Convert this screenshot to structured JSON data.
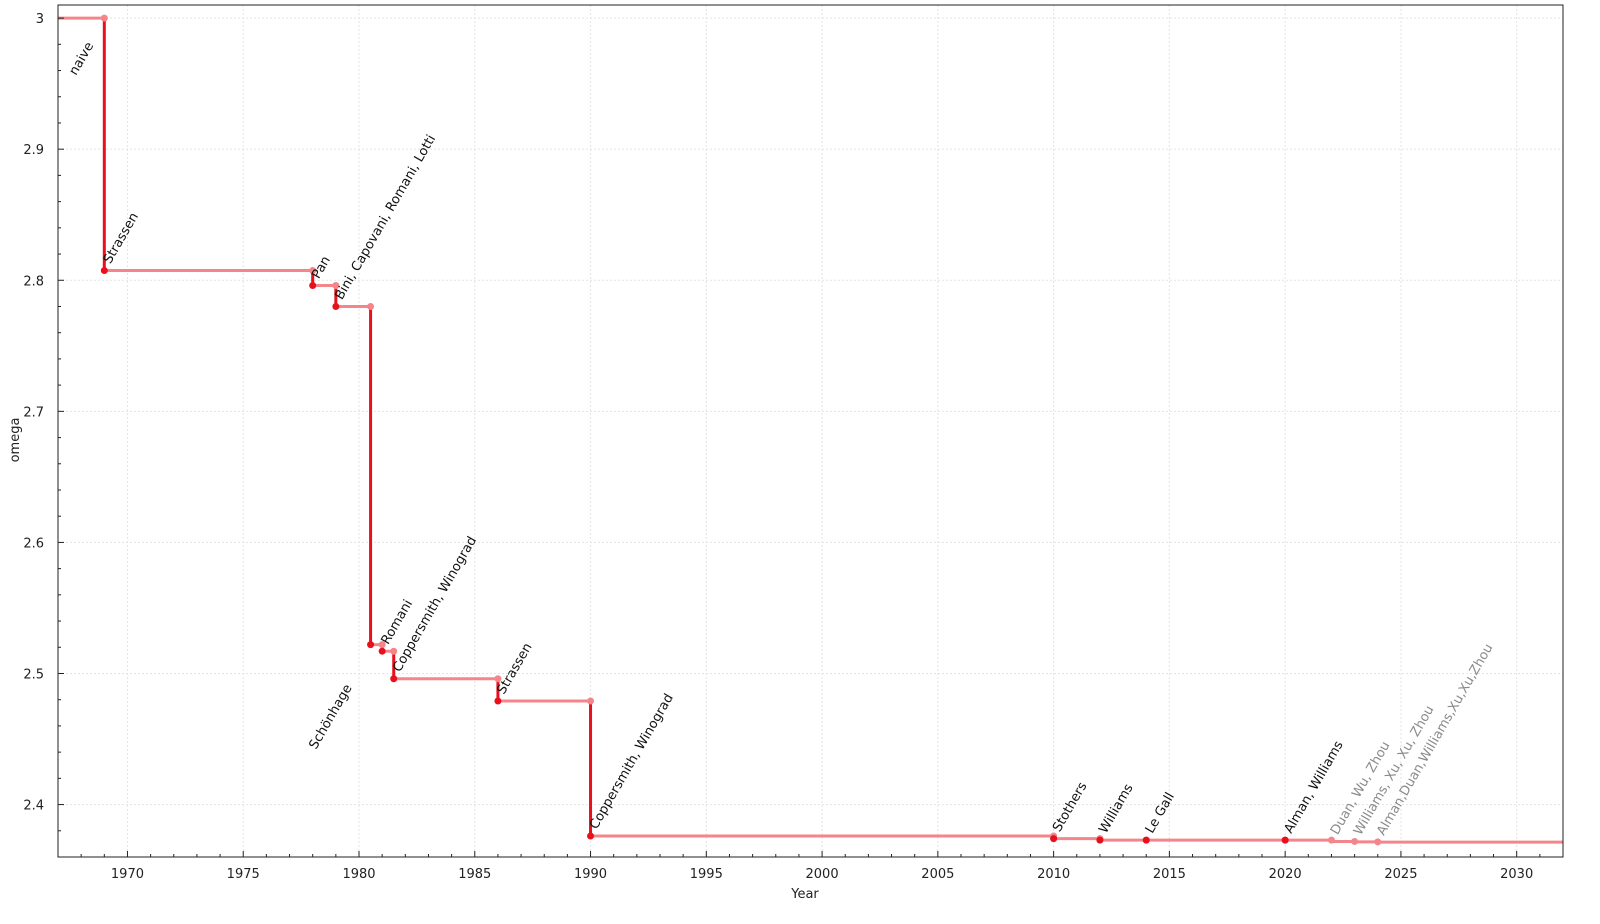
{
  "chart_data": {
    "type": "line",
    "step": true,
    "xlabel": "Year",
    "ylabel": "omega",
    "xlim": [
      1967,
      2032
    ],
    "ylim": [
      2.36,
      3.01
    ],
    "xticks": [
      1970,
      1975,
      1980,
      1985,
      1990,
      1995,
      2000,
      2005,
      2010,
      2015,
      2020,
      2025,
      2030
    ],
    "yticks": [
      2.4,
      2.5,
      2.6,
      2.7,
      2.8,
      2.9,
      3
    ],
    "ytick_labels": [
      "2.4",
      "2.5",
      "2.6",
      "2.7",
      "2.8",
      "2.9",
      "3"
    ],
    "grid": true,
    "colors": {
      "horizontal": "#f4858a",
      "drop": "#e8101a",
      "label": "#111111",
      "label_muted": "#8a8a8a"
    },
    "points": [
      {
        "label": "naive",
        "year": null,
        "omega": 3,
        "muted": false
      },
      {
        "label": "Strassen",
        "year": 1969,
        "omega": 2.8074,
        "muted": false
      },
      {
        "label": "Pan",
        "year": 1978,
        "omega": 2.796,
        "muted": false
      },
      {
        "label": "Bini, Capovani, Romani, Lotti",
        "year": 1979,
        "omega": 2.78,
        "muted": false
      },
      {
        "label": "Schönhage",
        "year": 1980.5,
        "omega": 2.522,
        "muted": false
      },
      {
        "label": "Romani",
        "year": 1981,
        "omega": 2.517,
        "muted": false
      },
      {
        "label": "Coppersmith, Winograd",
        "year": 1981.5,
        "omega": 2.496,
        "muted": false
      },
      {
        "label": "Strassen",
        "year": 1986,
        "omega": 2.479,
        "muted": false
      },
      {
        "label": "Coppersmith, Winograd",
        "year": 1990,
        "omega": 2.376,
        "muted": false
      },
      {
        "label": "Stothers",
        "year": 2010,
        "omega": 2.374,
        "muted": false
      },
      {
        "label": "Williams",
        "year": 2012,
        "omega": 2.3729,
        "muted": false
      },
      {
        "label": "Le Gall",
        "year": 2014,
        "omega": 2.3728639,
        "muted": false
      },
      {
        "label": "Alman, Williams",
        "year": 2020,
        "omega": 2.3728596,
        "muted": false
      },
      {
        "label": "Duan, Wu, Zhou",
        "year": 2022,
        "omega": 2.371866,
        "muted": true
      },
      {
        "label": "Williams, Xu, Xu, Zhou",
        "year": 2023,
        "omega": 2.371552,
        "muted": true
      },
      {
        "label": "Alman,Duan,Williams,Xu,Xu,Zhou",
        "year": 2024,
        "omega": 2.371339,
        "muted": true
      }
    ]
  }
}
